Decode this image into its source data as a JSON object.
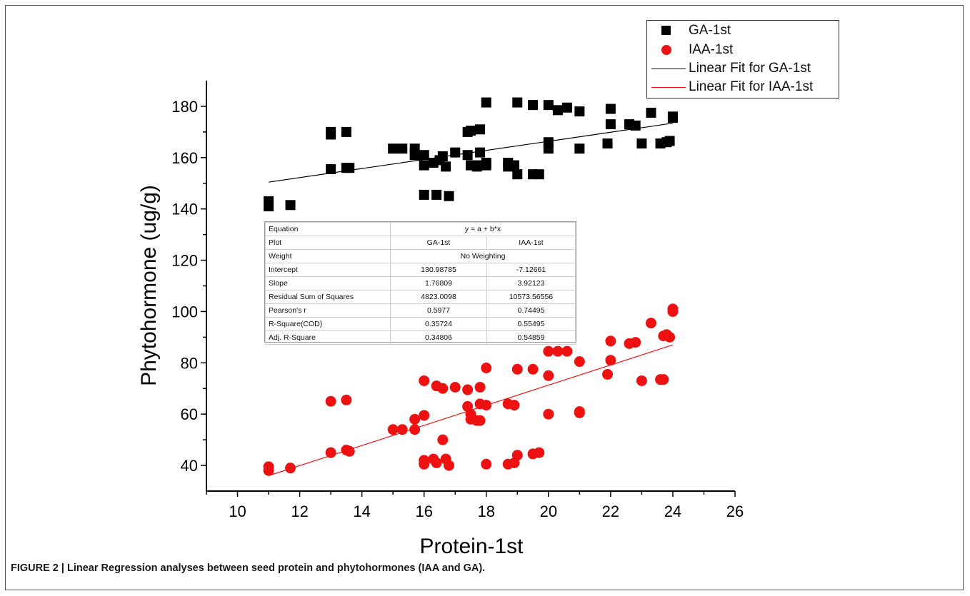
{
  "caption": "FIGURE 2 | Linear Regression analyses between seed protein and phytohormones (IAA and GA).",
  "legend": {
    "ga_points": "GA-1st",
    "iaa_points": "IAA-1st",
    "ga_fit": "Linear Fit for GA-1st",
    "iaa_fit": "Linear Fit for IAA-1st"
  },
  "colors": {
    "ga": "#000000",
    "iaa": "#ee1111",
    "axis": "#000000"
  },
  "stats_table": {
    "equation_label": "Equation",
    "equation_value": "y = a + b*x",
    "plot_label": "Plot",
    "plot_ga": "GA-1st",
    "plot_iaa": "IAA-1st",
    "weight_label": "Weight",
    "weight_value": "No Weighting",
    "rows": [
      {
        "label": "Intercept",
        "ga": "130.98785",
        "iaa": "-7.12661"
      },
      {
        "label": "Slope",
        "ga": "1.76809",
        "iaa": "3.92123"
      },
      {
        "label": "Residual Sum of Squares",
        "ga": "4823.0098",
        "iaa": "10573.56556"
      },
      {
        "label": "Pearson's r",
        "ga": "0.5977",
        "iaa": "0.74495"
      },
      {
        "label": "R-Square(COD)",
        "ga": "0.35724",
        "iaa": "0.55495"
      },
      {
        "label": "Adj. R-Square",
        "ga": "0.34806",
        "iaa": "0.54859"
      }
    ]
  },
  "chart_data": {
    "type": "scatter",
    "xlabel": "Protein-1st",
    "ylabel": "Phytohormone (ug/g)",
    "xlim": [
      9,
      26
    ],
    "ylim": [
      30,
      190
    ],
    "xticks": [
      10,
      12,
      14,
      16,
      18,
      20,
      22,
      24,
      26
    ],
    "yticks": [
      40,
      60,
      80,
      100,
      120,
      140,
      160,
      180
    ],
    "legend_position": "top-right",
    "grid": false,
    "series": [
      {
        "name": "GA-1st",
        "marker": "square",
        "points": [
          [
            11,
            143
          ],
          [
            11,
            141
          ],
          [
            11.7,
            141.5
          ],
          [
            13,
            170
          ],
          [
            13,
            169
          ],
          [
            13,
            155.5
          ],
          [
            13.5,
            170
          ],
          [
            13.5,
            156
          ],
          [
            13.6,
            156
          ],
          [
            15,
            163.5
          ],
          [
            15.3,
            163.5
          ],
          [
            15.7,
            163.5
          ],
          [
            15.7,
            161
          ],
          [
            16,
            161
          ],
          [
            16,
            157
          ],
          [
            16,
            145.5
          ],
          [
            16.3,
            158
          ],
          [
            16.4,
            145.5
          ],
          [
            16.5,
            159
          ],
          [
            16.6,
            160.5
          ],
          [
            16.7,
            156.5
          ],
          [
            16.8,
            145
          ],
          [
            17,
            162
          ],
          [
            17.4,
            161
          ],
          [
            17.4,
            170
          ],
          [
            17.5,
            170.5
          ],
          [
            17.5,
            157
          ],
          [
            17.7,
            156.5
          ],
          [
            17.8,
            157
          ],
          [
            17.8,
            171
          ],
          [
            17.8,
            162
          ],
          [
            18,
            157
          ],
          [
            18,
            158
          ],
          [
            18,
            181.5
          ],
          [
            18.7,
            158
          ],
          [
            18.7,
            156.5
          ],
          [
            18.9,
            157
          ],
          [
            19,
            153.5
          ],
          [
            19,
            181.5
          ],
          [
            19.5,
            180.5
          ],
          [
            19.5,
            153.5
          ],
          [
            19.7,
            153.5
          ],
          [
            20,
            180.5
          ],
          [
            20,
            166
          ],
          [
            20,
            163.5
          ],
          [
            20.3,
            178.5
          ],
          [
            20.6,
            179.5
          ],
          [
            21,
            178
          ],
          [
            21,
            163.5
          ],
          [
            21.9,
            165.5
          ],
          [
            22,
            173
          ],
          [
            22,
            179
          ],
          [
            22.6,
            173
          ],
          [
            22.8,
            172.5
          ],
          [
            23,
            165.5
          ],
          [
            23.3,
            177.5
          ],
          [
            23.6,
            165.5
          ],
          [
            23.8,
            166
          ],
          [
            23.9,
            166.5
          ],
          [
            24,
            175.5
          ],
          [
            24,
            176
          ]
        ]
      },
      {
        "name": "IAA-1st",
        "marker": "circle",
        "points": [
          [
            11,
            39.5
          ],
          [
            11,
            38
          ],
          [
            11.7,
            39
          ],
          [
            13,
            65
          ],
          [
            13,
            45
          ],
          [
            13.5,
            65.5
          ],
          [
            13.5,
            46
          ],
          [
            13.6,
            45.5
          ],
          [
            15,
            54
          ],
          [
            15.3,
            54
          ],
          [
            15.7,
            54
          ],
          [
            15.7,
            58
          ],
          [
            16,
            59.5
          ],
          [
            16,
            73
          ],
          [
            16,
            42
          ],
          [
            16,
            40.5
          ],
          [
            16.3,
            42.5
          ],
          [
            16.4,
            71
          ],
          [
            16.4,
            41
          ],
          [
            16.6,
            70
          ],
          [
            16.6,
            50
          ],
          [
            16.7,
            42.5
          ],
          [
            16.8,
            40
          ],
          [
            17,
            70.5
          ],
          [
            17.4,
            69.5
          ],
          [
            17.4,
            63
          ],
          [
            17.5,
            60
          ],
          [
            17.5,
            58
          ],
          [
            17.7,
            57.5
          ],
          [
            17.8,
            64
          ],
          [
            17.8,
            70.5
          ],
          [
            17.8,
            57.5
          ],
          [
            18,
            78
          ],
          [
            18,
            63.5
          ],
          [
            18,
            40.5
          ],
          [
            18.7,
            64
          ],
          [
            18.7,
            40.5
          ],
          [
            18.9,
            41
          ],
          [
            18.9,
            63.5
          ],
          [
            19,
            44
          ],
          [
            19,
            77.5
          ],
          [
            19.5,
            77.5
          ],
          [
            19.5,
            44.5
          ],
          [
            19.7,
            45
          ],
          [
            20,
            84.5
          ],
          [
            20,
            75
          ],
          [
            20,
            60
          ],
          [
            20.3,
            84.5
          ],
          [
            20.6,
            84.5
          ],
          [
            21,
            80.5
          ],
          [
            21,
            61
          ],
          [
            21,
            60.5
          ],
          [
            21.9,
            75.5
          ],
          [
            22,
            81
          ],
          [
            22,
            88.5
          ],
          [
            22.6,
            87.5
          ],
          [
            22.8,
            88
          ],
          [
            23,
            73
          ],
          [
            23.3,
            95.5
          ],
          [
            23.6,
            73.5
          ],
          [
            23.7,
            73.5
          ],
          [
            23.7,
            90.5
          ],
          [
            23.8,
            91
          ],
          [
            23.9,
            90
          ],
          [
            24,
            101
          ],
          [
            24,
            100
          ]
        ]
      }
    ],
    "fits": [
      {
        "name": "Linear Fit for GA-1st",
        "intercept": 130.98785,
        "slope": 1.76809,
        "x_range": [
          11,
          24
        ]
      },
      {
        "name": "Linear Fit for IAA-1st",
        "intercept": -7.12661,
        "slope": 3.92123,
        "x_range": [
          11,
          24
        ]
      }
    ]
  }
}
